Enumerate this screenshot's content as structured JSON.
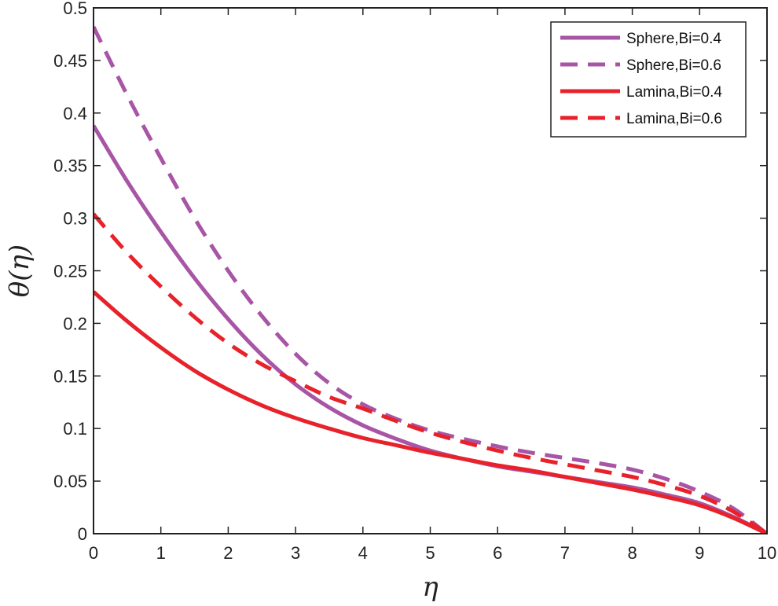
{
  "chart_data": {
    "type": "line",
    "title": "",
    "xlabel": "η",
    "ylabel": "θ(η)",
    "xlim": [
      0,
      10
    ],
    "ylim": [
      0,
      0.5
    ],
    "x_ticks": [
      0,
      1,
      2,
      3,
      4,
      5,
      6,
      7,
      8,
      9,
      10
    ],
    "x_tick_labels": [
      "0",
      "1",
      "2",
      "3",
      "4",
      "5",
      "6",
      "7",
      "8",
      "9",
      "10"
    ],
    "y_ticks": [
      0,
      0.05,
      0.1,
      0.15,
      0.2,
      0.25,
      0.3,
      0.35,
      0.4,
      0.45,
      0.5
    ],
    "y_tick_labels": [
      "0",
      "0.05",
      "0.1",
      "0.15",
      "0.2",
      "0.25",
      "0.3",
      "0.35",
      "0.4",
      "0.45",
      "0.5"
    ],
    "grid": false,
    "legend_position": "top-right",
    "x": [
      0,
      0.5,
      1,
      1.5,
      2,
      2.5,
      3,
      3.5,
      4,
      4.5,
      5,
      5.5,
      6,
      6.5,
      7,
      7.5,
      8,
      8.5,
      9,
      9.5,
      10
    ],
    "series": [
      {
        "name": "Sphere,Bi=0.4",
        "color": "#a855a6",
        "dash": "solid",
        "values": [
          0.388,
          0.335,
          0.287,
          0.243,
          0.204,
          0.17,
          0.142,
          0.12,
          0.103,
          0.09,
          0.079,
          0.071,
          0.064,
          0.059,
          0.054,
          0.049,
          0.044,
          0.037,
          0.029,
          0.016,
          0.0
        ]
      },
      {
        "name": "Sphere,Bi=0.6",
        "color": "#a855a6",
        "dash": "dashed",
        "values": [
          0.482,
          0.417,
          0.357,
          0.3,
          0.25,
          0.207,
          0.171,
          0.143,
          0.123,
          0.109,
          0.098,
          0.09,
          0.083,
          0.077,
          0.072,
          0.067,
          0.061,
          0.052,
          0.04,
          0.024,
          0.0
        ]
      },
      {
        "name": "Lamina,Bi=0.4",
        "color": "#e8222a",
        "dash": "solid",
        "values": [
          0.23,
          0.202,
          0.177,
          0.155,
          0.137,
          0.122,
          0.11,
          0.1,
          0.091,
          0.084,
          0.077,
          0.071,
          0.065,
          0.06,
          0.054,
          0.048,
          0.042,
          0.035,
          0.027,
          0.015,
          0.0
        ]
      },
      {
        "name": "Lamina,Bi=0.6",
        "color": "#e8222a",
        "dash": "dashed",
        "values": [
          0.304,
          0.267,
          0.235,
          0.206,
          0.181,
          0.161,
          0.145,
          0.13,
          0.119,
          0.107,
          0.096,
          0.087,
          0.079,
          0.072,
          0.066,
          0.06,
          0.054,
          0.046,
          0.036,
          0.021,
          0.0
        ]
      }
    ]
  }
}
